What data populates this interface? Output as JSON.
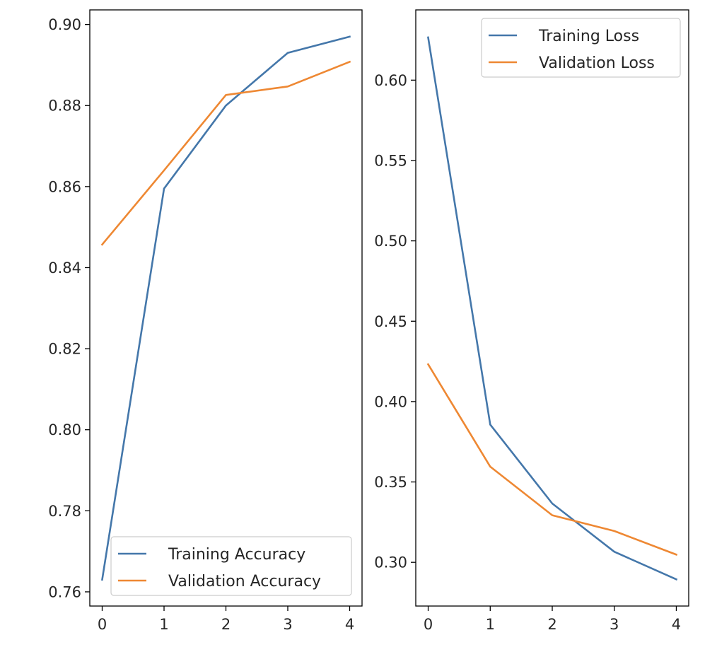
{
  "chart_data": [
    {
      "type": "line",
      "title": "",
      "xlabel": "",
      "ylabel": "",
      "x": [
        0,
        1,
        2,
        3,
        4
      ],
      "xticks": [
        "0",
        "1",
        "2",
        "3",
        "4"
      ],
      "xlim": [
        -0.2,
        4.2
      ],
      "yticks": [
        "0.76",
        "0.78",
        "0.80",
        "0.82",
        "0.84",
        "0.86",
        "0.88",
        "0.90"
      ],
      "ylim": [
        0.7565,
        0.9036
      ],
      "grid": false,
      "legend_position": "lower-right",
      "series": [
        {
          "name": "Training Accuracy",
          "color": "#4477AA",
          "values": [
            0.763,
            0.8595,
            0.88,
            0.893,
            0.897
          ]
        },
        {
          "name": "Validation Accuracy",
          "color": "#EE8833",
          "values": [
            0.8457,
            0.864,
            0.8826,
            0.8847,
            0.8908
          ]
        }
      ]
    },
    {
      "type": "line",
      "title": "",
      "xlabel": "",
      "ylabel": "",
      "x": [
        0,
        1,
        2,
        3,
        4
      ],
      "xticks": [
        "0",
        "1",
        "2",
        "3",
        "4"
      ],
      "xlim": [
        -0.2,
        4.2
      ],
      "yticks": [
        "0.30",
        "0.35",
        "0.40",
        "0.45",
        "0.50",
        "0.55",
        "0.60"
      ],
      "ylim": [
        0.2728,
        0.6437
      ],
      "grid": false,
      "legend_position": "upper-right",
      "series": [
        {
          "name": "Training Loss",
          "color": "#4477AA",
          "values": [
            0.6266,
            0.3857,
            0.3366,
            0.3066,
            0.2894
          ]
        },
        {
          "name": "Validation Loss",
          "color": "#EE8833",
          "values": [
            0.4232,
            0.3595,
            0.3293,
            0.3195,
            0.3048
          ]
        }
      ]
    }
  ]
}
